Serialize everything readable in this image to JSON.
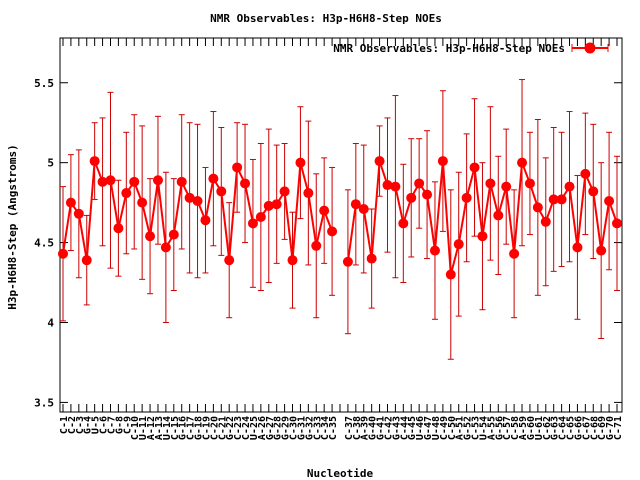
{
  "chart_data": {
    "type": "line",
    "title": "NMR Observables: H3p-H6H8-Step NOEs",
    "xlabel": "Nucleotide",
    "ylabel": "H3p-H6H8-Step (Angstroms)",
    "ylim": [
      3.44,
      5.78
    ],
    "yticks": [
      3.5,
      4,
      4.5,
      5,
      5.5
    ],
    "ytick_labels": [
      "3.5",
      "4",
      "4.5",
      "5",
      "5.5"
    ],
    "legend_position": "top-right",
    "grid": false,
    "colors": {
      "series": "#ff0000",
      "error_bar": "#cc0000",
      "axis": "#000000"
    },
    "categories": [
      "C-1",
      "C-2",
      "C-3",
      "G-4",
      "U-5",
      "C-6",
      "C-7",
      "G-8",
      "C-9",
      "C-10",
      "U-11",
      "A-12",
      "A-13",
      "U-14",
      "C-15",
      "G-16",
      "C-17",
      "G-18",
      "C-19",
      "C-20",
      "C-21",
      "G-22",
      "C-23",
      "C-24",
      "U-25",
      "A-26",
      "G-27",
      "G-28",
      "G-29",
      "C-30",
      "G-31",
      "G-32",
      "C-33",
      "C-34",
      "C-35",
      "",
      "C-37",
      "C-38",
      "A-39",
      "G-40",
      "G-41",
      "C-42",
      "G-43",
      "C-44",
      "G-45",
      "U-46",
      "G-47",
      "U-48",
      "C-49",
      "C-50",
      "A-51",
      "G-52",
      "C-53",
      "U-54",
      "A-55",
      "G-56",
      "C-57",
      "C-58",
      "A-59",
      "G-60",
      "U-61",
      "C-62",
      "G-63",
      "C-64",
      "C-65",
      "G-66",
      "C-67",
      "C-68",
      "C-69",
      "G-70",
      "C-71"
    ],
    "series": [
      {
        "name": "NMR Observables: H3p-H6H8-Step NOEs",
        "values": [
          4.43,
          4.75,
          4.68,
          4.39,
          5.01,
          4.88,
          4.89,
          4.59,
          4.81,
          4.88,
          4.75,
          4.54,
          4.89,
          4.47,
          4.55,
          4.88,
          4.78,
          4.76,
          4.64,
          4.9,
          4.82,
          4.39,
          4.97,
          4.87,
          4.62,
          4.66,
          4.73,
          4.74,
          4.82,
          4.39,
          5.0,
          4.81,
          4.48,
          4.7,
          4.57,
          null,
          4.38,
          4.74,
          4.71,
          4.4,
          5.01,
          4.86,
          4.85,
          4.62,
          4.78,
          4.87,
          4.8,
          4.45,
          5.01,
          4.3,
          4.49,
          4.78,
          4.97,
          4.54,
          4.87,
          4.67,
          4.85,
          4.43,
          5.0,
          4.87,
          4.72,
          4.63,
          4.77,
          4.77,
          4.85,
          4.47,
          4.93,
          4.82,
          4.45,
          4.76,
          4.62
        ],
        "errors": [
          0.42,
          0.3,
          0.4,
          0.28,
          0.24,
          0.4,
          0.55,
          0.3,
          0.38,
          0.42,
          0.48,
          0.36,
          0.4,
          0.47,
          0.35,
          0.42,
          0.47,
          0.48,
          0.33,
          0.42,
          0.4,
          0.36,
          0.28,
          0.37,
          0.4,
          0.46,
          0.48,
          0.37,
          0.3,
          0.3,
          0.35,
          0.45,
          0.45,
          0.33,
          0.4,
          null,
          0.45,
          0.38,
          0.4,
          0.31,
          0.22,
          0.42,
          0.57,
          0.37,
          0.37,
          0.28,
          0.4,
          0.43,
          0.44,
          0.53,
          0.45,
          0.4,
          0.43,
          0.46,
          0.48,
          0.37,
          0.36,
          0.4,
          0.52,
          0.32,
          0.55,
          0.4,
          0.45,
          0.42,
          0.47,
          0.45,
          0.38,
          0.42,
          0.55,
          0.43,
          0.42
        ]
      }
    ]
  }
}
